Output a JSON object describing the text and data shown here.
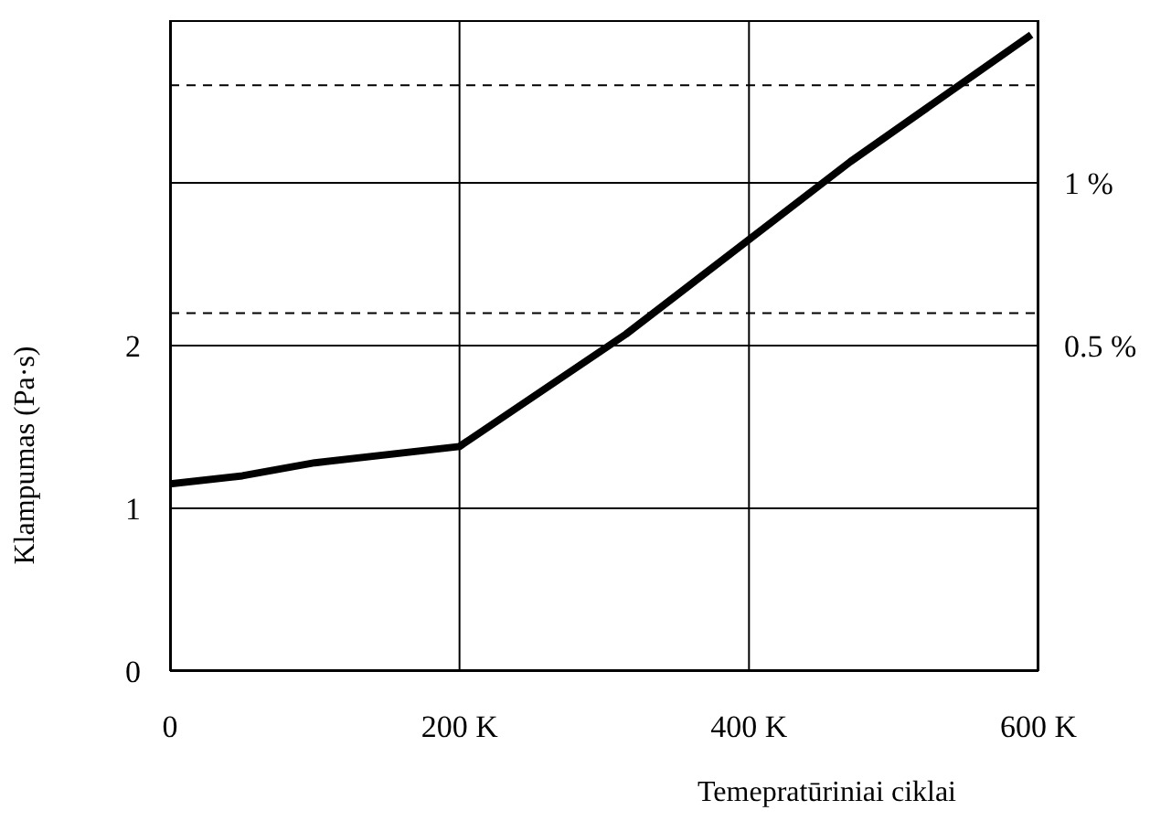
{
  "chart_data": {
    "type": "line",
    "xlabel": "Temepratūriniai ciklai",
    "ylabel": "Klampumas (Pa·s)",
    "x": [
      0,
      50,
      100,
      200,
      315,
      470,
      595
    ],
    "series": [
      {
        "color": "#000000",
        "values": [
          1.15,
          1.2,
          1.28,
          1.38,
          2.07,
          3.13,
          3.91
        ]
      }
    ],
    "xlim": [
      0,
      600
    ],
    "xticks": [
      0,
      {
        "value": 200,
        "label": "200 K"
      },
      {
        "value": 400,
        "label": "400 K"
      },
      {
        "value": 600,
        "label": "600 K"
      }
    ],
    "ylim": [
      0,
      4
    ],
    "yticks": [
      0,
      1,
      2,
      {
        "value": 3,
        "label": null
      }
    ],
    "y2lim": [
      -0.5,
      1.5
    ],
    "y2ticks": [
      {
        "value": 0.5,
        "label": "0.5 %"
      },
      {
        "value": 1,
        "label": "1 %"
      }
    ],
    "ref_lines": [
      {
        "axis": "y",
        "value": 3.6,
        "line_style": "dashed"
      },
      {
        "axis": "y",
        "value": 2.2,
        "line_style": "dashed"
      }
    ],
    "grid": true,
    "marker": "none",
    "line_style": "solid"
  }
}
